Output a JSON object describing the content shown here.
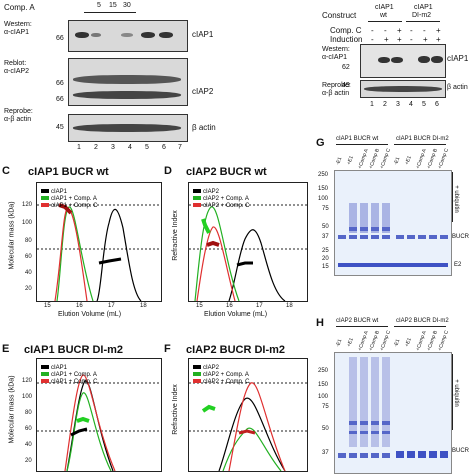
{
  "panelA": {
    "comp_label": "Comp. A",
    "doses": [
      "5",
      "15",
      "30"
    ],
    "blot1": {
      "label1": "Western:",
      "label2": "α-cIAP1",
      "mw": "66",
      "band": "cIAP1"
    },
    "blot2": {
      "label1": "Reblot:",
      "label2": "α-cIAP2",
      "mw1": "66",
      "mw2": "66",
      "band": "cIAP2"
    },
    "blot3": {
      "label1": "Reprobe:",
      "label2": "α-β actin",
      "mw": "45",
      "band": "β actin"
    },
    "lanes": [
      "1",
      "2",
      "3",
      "4",
      "5",
      "6",
      "7"
    ]
  },
  "panelB": {
    "construct_label": "Construct",
    "wt": "cIAP1\nwt",
    "wt_line1": "cIAP1",
    "wt_line2": "wt",
    "dim_line1": "cIAP1",
    "dim_line2": "DI-m2",
    "compc_label": "Comp. C",
    "induction_label": "Induction",
    "compc_signs": [
      "-",
      "-",
      "+",
      "-",
      "-",
      "+"
    ],
    "induction_signs": [
      "-",
      "+",
      "+",
      "-",
      "+",
      "+"
    ],
    "blot1": {
      "label1": "Western:",
      "label2": "α-cIAP1",
      "mw": "62",
      "band": "cIAP1"
    },
    "blot2": {
      "label1": "Reprobe:",
      "label2": "α-β actin",
      "mw": "49",
      "band": "β actin"
    },
    "lanes": [
      "1",
      "2",
      "3",
      "4",
      "5",
      "6"
    ]
  },
  "panelC": {
    "letter": "C",
    "title": "cIAP1 BUCR wt",
    "legend": [
      "cIAP1",
      "cIAP1 + Comp. A",
      "cIAP1 + Comp. C"
    ],
    "ylabel": "Molecular mass (kDa)",
    "xlabel": "Elution Volume (mL)",
    "yticks": [
      "120",
      "100",
      "80",
      "60",
      "40",
      "20",
      "0"
    ],
    "xticks": [
      "15",
      "16",
      "17",
      "18"
    ]
  },
  "panelD": {
    "letter": "D",
    "title": "cIAP2 BUCR wt",
    "legend": [
      "cIAP2",
      "cIAP2 + Comp. A",
      "cIAP2 + Comp. C"
    ],
    "ylabel": "Refractive Index",
    "xlabel": "Elution Volume (mL)",
    "xticks": [
      "15",
      "16",
      "17",
      "18"
    ]
  },
  "panelE": {
    "letter": "E",
    "title": "cIAP1 BUCR DI-m2",
    "legend": [
      "cIAP1",
      "cIAP1 + Comp. A",
      "cIAP1 + Comp. C"
    ],
    "ylabel": "Molecular mass (kDa)",
    "yticks": [
      "120",
      "100",
      "80",
      "60",
      "40",
      "20"
    ]
  },
  "panelF": {
    "letter": "F",
    "title": "cIAP2 BUCR DI-m2",
    "legend": [
      "cIAP2",
      "cIAP2 + Comp. A",
      "cIAP2 + Comp. C"
    ],
    "ylabel": "Refractive Index"
  },
  "panelG": {
    "letter": "G",
    "group1": "cIAP1 BUCR wt",
    "group2": "cIAP1 BUCR DI-m2",
    "lanes": [
      "-E1",
      "+E1",
      "+Comp A",
      "+Comp B",
      "+Comp C",
      "-E1",
      "+E1",
      "+Comp A",
      "+Comp B",
      "+Comp C"
    ],
    "mw": [
      "250",
      "150",
      "100",
      "75",
      "50",
      "37",
      "25",
      "20",
      "15"
    ],
    "right_labels": [
      "+ ubiquitin",
      "BUCR",
      "E2"
    ]
  },
  "panelH": {
    "letter": "H",
    "group1": "cIAP2 BUCR wt",
    "group2": "cIAP2 BUCR DI-m2",
    "lanes": [
      "-E1",
      "+E1",
      "+Comp A",
      "+Comp B",
      "+Comp C",
      "-E1",
      "+E1",
      "+Comp A",
      "+Comp B",
      "+Comp C"
    ],
    "mw": [
      "250",
      "150",
      "100",
      "75",
      "50",
      "37"
    ],
    "right_labels": [
      "+ ubiquitin",
      "BUCR"
    ]
  }
}
